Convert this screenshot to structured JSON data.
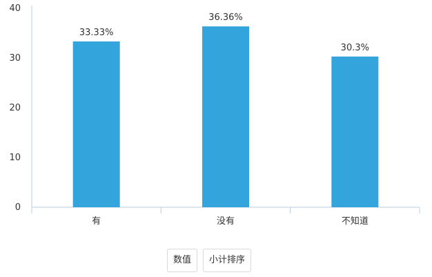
{
  "chart_data": {
    "type": "bar",
    "categories": [
      "有",
      "没有",
      "不知道"
    ],
    "values": [
      33.33,
      36.36,
      30.3
    ],
    "data_labels": [
      "33.33%",
      "36.36%",
      "30.3%"
    ],
    "title": "",
    "xlabel": "",
    "ylabel": "",
    "ylim": [
      0,
      40
    ],
    "yticks": [
      "0",
      "10",
      "20",
      "30",
      "40"
    ],
    "grid": false,
    "legend": "none",
    "bar_color": "#34a4dc",
    "axis_color": "#b7cde0"
  },
  "controls": {
    "value_label": "数值",
    "sort_label": "小计排序"
  }
}
